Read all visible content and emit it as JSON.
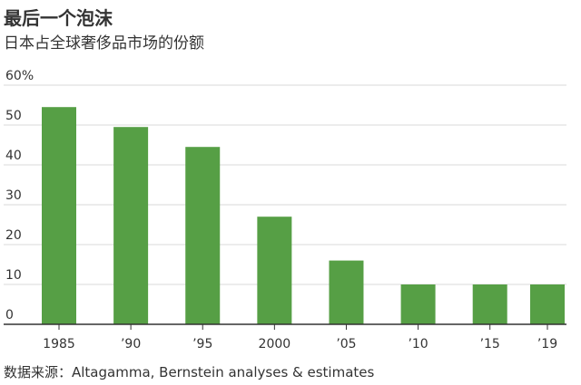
{
  "header": {
    "title": "最后一个泡沫",
    "subtitle": "日本占全球奢侈品市场的份额"
  },
  "footer": {
    "source": "数据来源：Altagamma, Bernstein analyses & estimates"
  },
  "colors": {
    "bar": "#569f45",
    "grid": "#d9d9d9",
    "axis": "#333333"
  },
  "chart_data": {
    "type": "bar",
    "categories": [
      "1985",
      "’90",
      "’95",
      "2000",
      "’05",
      "’10",
      "’15",
      "’19"
    ],
    "x": [
      1985,
      1990,
      1995,
      2000,
      2005,
      2010,
      2015,
      2019
    ],
    "values": [
      54.5,
      49.5,
      44.5,
      27,
      16,
      10,
      10,
      10
    ],
    "title": "最后一个泡沫",
    "subtitle": "日本占全球奢侈品市场的份额",
    "y_ticks": [
      "0",
      "10",
      "20",
      "30",
      "40",
      "50",
      "60%"
    ],
    "ylim": [
      0,
      60
    ],
    "grid": true,
    "legend": "none"
  }
}
